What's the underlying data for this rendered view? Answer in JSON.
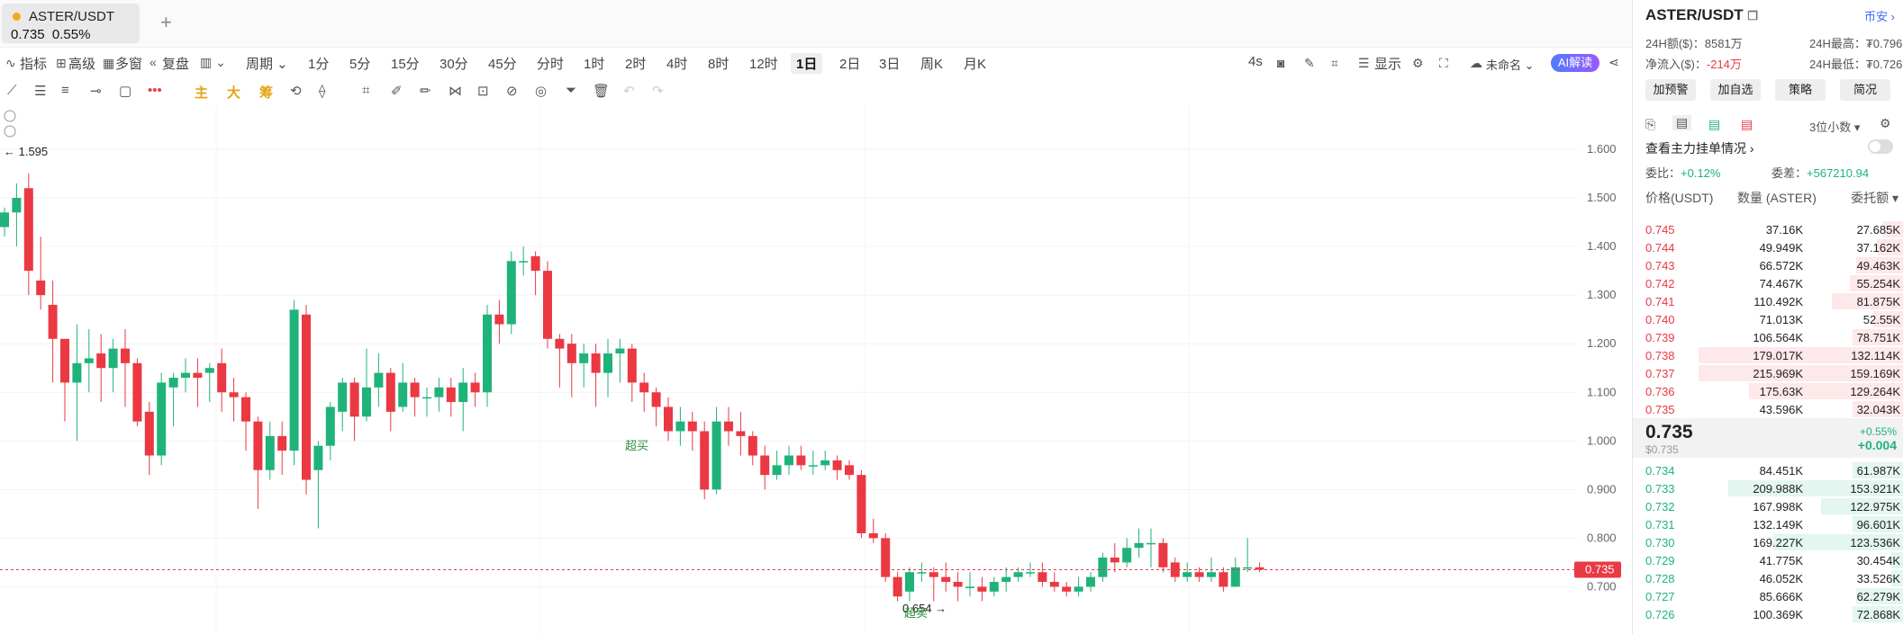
{
  "tab": {
    "symbol": "ASTER/USDT",
    "price": "0.735",
    "change": "0.55%",
    "add": "+"
  },
  "toolbar": {
    "indicators": "指标",
    "advanced": "高级",
    "multi_window": "多窗",
    "replay": "复盘",
    "period": "周期",
    "intervals": [
      "1分",
      "5分",
      "15分",
      "30分",
      "45分",
      "分时",
      "1时",
      "2时",
      "4时",
      "8时",
      "12时",
      "1日",
      "2日",
      "3日",
      "周K",
      "月K"
    ],
    "active_interval": "1日",
    "refresh": "4s",
    "display": "显示",
    "unnamed": "未命名",
    "ai": "AI解读"
  },
  "draw_tools": {
    "main": "主",
    "big": "大",
    "chips": "筹"
  },
  "chart_data": {
    "type": "candlestick",
    "price_ticks": [
      "1.600",
      "1.500",
      "1.400",
      "1.300",
      "1.200",
      "1.100",
      "1.000",
      "0.900",
      "0.800",
      "0.700"
    ],
    "high_marker": "← 1.595",
    "low_marker": "0.654 →",
    "annotations": [
      "超买",
      "超卖"
    ],
    "last_price_tag": "0.735",
    "last_price": 0.735,
    "up_color": "#1fb37a",
    "down_color": "#ea3943",
    "candles": [
      [
        1.44,
        1.47,
        1.48,
        1.42
      ],
      [
        1.47,
        1.5,
        1.53,
        1.4
      ],
      [
        1.52,
        1.35,
        1.55,
        1.3
      ],
      [
        1.33,
        1.3,
        1.42,
        1.27
      ],
      [
        1.28,
        1.21,
        1.33,
        1.12
      ],
      [
        1.21,
        1.12,
        1.2,
        1.04
      ],
      [
        1.12,
        1.16,
        1.24,
        1.0
      ],
      [
        1.16,
        1.17,
        1.23,
        1.1
      ],
      [
        1.18,
        1.15,
        1.22,
        1.08
      ],
      [
        1.15,
        1.19,
        1.21,
        1.1
      ],
      [
        1.19,
        1.16,
        1.23,
        1.07
      ],
      [
        1.16,
        1.04,
        1.17,
        1.03
      ],
      [
        1.06,
        0.97,
        1.08,
        0.93
      ],
      [
        0.97,
        1.12,
        1.14,
        0.95
      ],
      [
        1.11,
        1.13,
        1.14,
        1.03
      ],
      [
        1.13,
        1.14,
        1.17,
        1.1
      ],
      [
        1.14,
        1.13,
        1.17,
        1.07
      ],
      [
        1.14,
        1.15,
        1.16,
        1.08
      ],
      [
        1.16,
        1.1,
        1.19,
        1.06
      ],
      [
        1.1,
        1.09,
        1.13,
        1.04
      ],
      [
        1.09,
        1.04,
        1.1,
        0.98
      ],
      [
        1.04,
        0.94,
        1.05,
        0.86
      ],
      [
        0.94,
        1.01,
        1.04,
        0.92
      ],
      [
        1.01,
        0.98,
        1.04,
        0.93
      ],
      [
        0.98,
        1.27,
        1.29,
        0.95
      ],
      [
        1.26,
        0.92,
        1.28,
        0.89
      ],
      [
        0.94,
        0.99,
        1.0,
        0.82
      ],
      [
        0.99,
        1.07,
        1.08,
        0.96
      ],
      [
        1.06,
        1.12,
        1.13,
        1.02
      ],
      [
        1.12,
        1.05,
        1.13,
        1.0
      ],
      [
        1.05,
        1.11,
        1.19,
        1.04
      ],
      [
        1.11,
        1.14,
        1.18,
        1.07
      ],
      [
        1.14,
        1.06,
        1.15,
        1.02
      ],
      [
        1.07,
        1.12,
        1.16,
        1.06
      ],
      [
        1.12,
        1.09,
        1.13,
        1.05
      ],
      [
        1.09,
        1.09,
        1.11,
        1.05
      ],
      [
        1.09,
        1.11,
        1.13,
        1.06
      ],
      [
        1.11,
        1.08,
        1.13,
        1.05
      ],
      [
        1.08,
        1.12,
        1.15,
        1.02
      ],
      [
        1.12,
        1.1,
        1.14,
        1.07
      ],
      [
        1.1,
        1.26,
        1.28,
        1.07
      ],
      [
        1.26,
        1.24,
        1.29,
        1.2
      ],
      [
        1.24,
        1.37,
        1.39,
        1.22
      ],
      [
        1.37,
        1.37,
        1.4,
        1.34
      ],
      [
        1.38,
        1.35,
        1.39,
        1.3
      ],
      [
        1.35,
        1.21,
        1.37,
        1.19
      ],
      [
        1.21,
        1.19,
        1.22,
        1.11
      ],
      [
        1.2,
        1.16,
        1.22,
        1.09
      ],
      [
        1.16,
        1.18,
        1.2,
        1.11
      ],
      [
        1.18,
        1.14,
        1.2,
        1.07
      ],
      [
        1.14,
        1.18,
        1.21,
        1.09
      ],
      [
        1.18,
        1.19,
        1.21,
        1.12
      ],
      [
        1.19,
        1.12,
        1.2,
        1.08
      ],
      [
        1.12,
        1.1,
        1.14,
        1.06
      ],
      [
        1.1,
        1.07,
        1.11,
        1.03
      ],
      [
        1.07,
        1.02,
        1.09,
        1.0
      ],
      [
        1.02,
        1.04,
        1.07,
        0.99
      ],
      [
        1.04,
        1.02,
        1.06,
        0.98
      ],
      [
        1.02,
        0.9,
        1.04,
        0.88
      ],
      [
        0.9,
        1.04,
        1.07,
        0.89
      ],
      [
        1.04,
        1.02,
        1.07,
        0.99
      ],
      [
        1.02,
        1.01,
        1.06,
        0.97
      ],
      [
        1.01,
        0.97,
        1.02,
        0.95
      ],
      [
        0.97,
        0.93,
        0.99,
        0.9
      ],
      [
        0.93,
        0.95,
        0.98,
        0.92
      ],
      [
        0.95,
        0.97,
        0.99,
        0.93
      ],
      [
        0.97,
        0.95,
        0.99,
        0.94
      ],
      [
        0.95,
        0.95,
        0.98,
        0.93
      ],
      [
        0.95,
        0.96,
        0.98,
        0.94
      ],
      [
        0.96,
        0.94,
        0.97,
        0.92
      ],
      [
        0.95,
        0.93,
        0.96,
        0.92
      ],
      [
        0.93,
        0.81,
        0.94,
        0.8
      ],
      [
        0.81,
        0.8,
        0.84,
        0.79
      ],
      [
        0.8,
        0.72,
        0.81,
        0.71
      ],
      [
        0.72,
        0.68,
        0.73,
        0.67
      ],
      [
        0.69,
        0.73,
        0.74,
        0.67
      ],
      [
        0.73,
        0.73,
        0.75,
        0.71
      ],
      [
        0.73,
        0.72,
        0.74,
        0.67
      ],
      [
        0.72,
        0.71,
        0.75,
        0.69
      ],
      [
        0.71,
        0.7,
        0.73,
        0.67
      ],
      [
        0.7,
        0.7,
        0.73,
        0.68
      ],
      [
        0.7,
        0.69,
        0.72,
        0.67
      ],
      [
        0.69,
        0.71,
        0.72,
        0.68
      ],
      [
        0.71,
        0.72,
        0.74,
        0.69
      ],
      [
        0.72,
        0.73,
        0.74,
        0.71
      ],
      [
        0.73,
        0.73,
        0.75,
        0.72
      ],
      [
        0.73,
        0.71,
        0.75,
        0.7
      ],
      [
        0.71,
        0.7,
        0.73,
        0.69
      ],
      [
        0.7,
        0.69,
        0.71,
        0.68
      ],
      [
        0.69,
        0.7,
        0.72,
        0.68
      ],
      [
        0.7,
        0.72,
        0.73,
        0.69
      ],
      [
        0.72,
        0.76,
        0.77,
        0.71
      ],
      [
        0.76,
        0.75,
        0.79,
        0.73
      ],
      [
        0.75,
        0.78,
        0.8,
        0.74
      ],
      [
        0.78,
        0.79,
        0.82,
        0.76
      ],
      [
        0.79,
        0.79,
        0.82,
        0.74
      ],
      [
        0.79,
        0.74,
        0.8,
        0.73
      ],
      [
        0.75,
        0.72,
        0.76,
        0.71
      ],
      [
        0.72,
        0.73,
        0.75,
        0.71
      ],
      [
        0.73,
        0.72,
        0.74,
        0.71
      ],
      [
        0.72,
        0.73,
        0.76,
        0.71
      ],
      [
        0.73,
        0.7,
        0.74,
        0.69
      ],
      [
        0.7,
        0.74,
        0.76,
        0.7
      ],
      [
        0.74,
        0.74,
        0.8,
        0.73
      ],
      [
        0.74,
        0.735,
        0.75,
        0.73
      ]
    ]
  },
  "panel": {
    "symbol": "ASTER/USDT",
    "exchange": "币安",
    "vol_label": "24H额($)：",
    "vol": "8581万",
    "high_label": "24H最高：",
    "high": "₮0.796",
    "netflow_label": "净流入($)：",
    "netflow": "-214万",
    "low_label": "24H最低：",
    "low": "₮0.726",
    "buttons": [
      "加预警",
      "加自选",
      "策略",
      "简况"
    ],
    "decimals": "3位小数",
    "main_orders": "查看主力挂单情况",
    "ratio_label": "委比：",
    "ratio": "+0.12%",
    "diff_label": "委差：",
    "diff": "+567210.94",
    "headers": {
      "price": "价格(USDT)",
      "qty": "数量 (ASTER)",
      "total": "委托额"
    },
    "asks": [
      {
        "p": "0.745",
        "q": "37.16K",
        "c": "27.685K",
        "w": 0.1
      },
      {
        "p": "0.744",
        "q": "49.949K",
        "c": "37.162K",
        "w": 0.13
      },
      {
        "p": "0.743",
        "q": "66.572K",
        "c": "49.463K",
        "w": 0.23
      },
      {
        "p": "0.742",
        "q": "74.467K",
        "c": "55.254K",
        "w": 0.26
      },
      {
        "p": "0.741",
        "q": "110.492K",
        "c": "81.875K",
        "w": 0.35
      },
      {
        "p": "0.740",
        "q": "71.013K",
        "c": "52.55K",
        "w": 0.15
      },
      {
        "p": "0.739",
        "q": "106.564K",
        "c": "78.751K",
        "w": 0.25
      },
      {
        "p": "0.738",
        "q": "179.017K",
        "c": "132.114K",
        "w": 0.99
      },
      {
        "p": "0.737",
        "q": "215.969K",
        "c": "159.169K",
        "w": 0.99
      },
      {
        "p": "0.736",
        "q": "175.63K",
        "c": "129.264K",
        "w": 0.75
      },
      {
        "p": "0.735",
        "q": "43.596K",
        "c": "32.043K",
        "w": 0.25
      }
    ],
    "last": "0.735",
    "last_usd": "$0.735",
    "last_pct": "+0.55%",
    "last_chg": "+0.004",
    "bids": [
      {
        "p": "0.734",
        "q": "84.451K",
        "c": "61.987K",
        "w": 0.25
      },
      {
        "p": "0.733",
        "q": "209.988K",
        "c": "153.921K",
        "w": 0.85
      },
      {
        "p": "0.732",
        "q": "167.998K",
        "c": "122.975K",
        "w": 0.4
      },
      {
        "p": "0.731",
        "q": "132.149K",
        "c": "96.601K",
        "w": 0.25
      },
      {
        "p": "0.730",
        "q": "169.227K",
        "c": "123.536K",
        "w": 0.63
      },
      {
        "p": "0.729",
        "q": "41.775K",
        "c": "30.454K",
        "w": 0.06
      },
      {
        "p": "0.728",
        "q": "46.052K",
        "c": "33.526K",
        "w": 0.06
      },
      {
        "p": "0.727",
        "q": "85.666K",
        "c": "62.279K",
        "w": 0.23
      },
      {
        "p": "0.726",
        "q": "100.369K",
        "c": "72.868K",
        "w": 0.25
      }
    ]
  }
}
